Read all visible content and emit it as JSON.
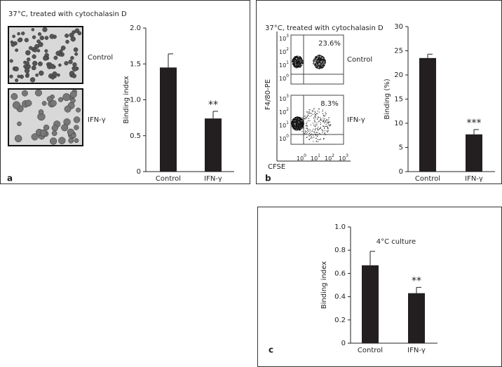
{
  "chart_data": [
    {
      "type": "bar",
      "panel_label": "a",
      "title": "37°C, treated with cytochalasin D",
      "ylabel": "Binding index",
      "categories": [
        "Control",
        "IFN-γ"
      ],
      "values": [
        1.45,
        0.74
      ],
      "errors": [
        0.19,
        0.1
      ],
      "significance": [
        null,
        "**"
      ],
      "color": "#231f20",
      "ylim": [
        0,
        2
      ],
      "yticks": [
        0,
        0.5,
        {
          "value": 1,
          "label": "1.0"
        },
        1.5,
        {
          "value": 2,
          "label": "2.0"
        }
      ],
      "images": [
        {
          "label": "Control"
        },
        {
          "label": "IFN-γ"
        }
      ]
    },
    {
      "type": "bar",
      "panel_label": "b",
      "title": "37°C, treated with cytochalasin D",
      "ylabel": "Binding (%)",
      "categories": [
        "Control",
        "IFN-γ"
      ],
      "values": [
        23.5,
        7.7
      ],
      "errors": [
        0.8,
        1.0
      ],
      "significance": [
        null,
        "***"
      ],
      "color": "#231f20",
      "ylim": [
        0,
        30
      ],
      "yticks": [
        0,
        5,
        10,
        15,
        20,
        25,
        30
      ],
      "flow": {
        "ylabel": "F4/80-PE",
        "xlabel": "CFSE",
        "tick_base": "10",
        "tick_exponents": [
          "0",
          "1",
          "2",
          "3"
        ],
        "plots": [
          {
            "label": "Control",
            "percent": "23.6%"
          },
          {
            "label": "IFN-γ",
            "percent": "8.3%"
          }
        ]
      }
    },
    {
      "type": "bar",
      "panel_label": "c",
      "title": "4°C culture",
      "ylabel": "Binding index",
      "categories": [
        "Control",
        "IFN-γ"
      ],
      "values": [
        0.67,
        0.43
      ],
      "errors": [
        0.12,
        0.05
      ],
      "significance": [
        null,
        "**"
      ],
      "color": "#231f20",
      "ylim": [
        0,
        1
      ],
      "yticks": [
        0,
        0.2,
        0.4,
        0.6,
        0.8,
        {
          "value": 1,
          "label": "1.0"
        }
      ]
    }
  ]
}
